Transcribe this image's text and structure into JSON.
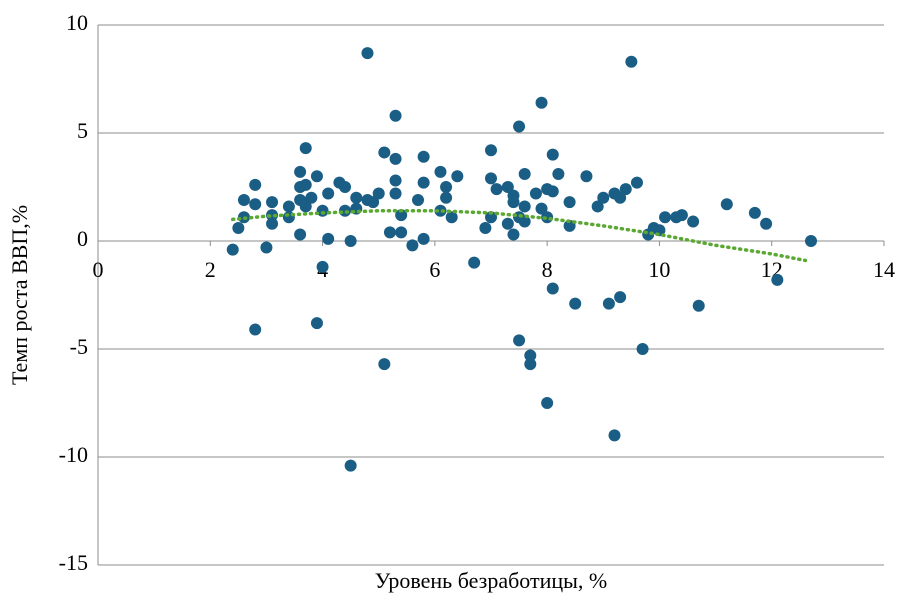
{
  "chart_data": {
    "type": "scatter",
    "xlabel": "Уровень безработицы, %",
    "ylabel": "Темп роста  ВВП,%",
    "xlim": [
      0,
      14
    ],
    "xticks": [
      0,
      2,
      4,
      6,
      8,
      10,
      12,
      14
    ],
    "ylim": [
      -15,
      10
    ],
    "yticks": [
      -15,
      -10,
      -5,
      0,
      5,
      10
    ],
    "grid": true,
    "series": [
      {
        "color": "#1b5e85",
        "x": [
          2.4,
          2.5,
          2.6,
          2.6,
          2.8,
          2.8,
          2.8,
          3.0,
          3.1,
          3.1,
          3.1,
          3.4,
          3.4,
          3.6,
          3.6,
          3.6,
          3.6,
          3.7,
          3.7,
          3.7,
          3.8,
          3.9,
          3.9,
          4.0,
          4.0,
          4.1,
          4.1,
          4.3,
          4.4,
          4.4,
          4.5,
          4.5,
          4.6,
          4.6,
          4.8,
          4.8,
          4.9,
          5.0,
          5.1,
          5.1,
          5.2,
          5.3,
          5.3,
          5.3,
          5.3,
          5.4,
          5.4,
          5.6,
          5.7,
          5.8,
          5.8,
          5.8,
          6.1,
          6.1,
          6.2,
          6.2,
          6.3,
          6.4,
          6.7,
          6.9,
          7.0,
          7.0,
          7.0,
          7.1,
          7.3,
          7.3,
          7.4,
          7.4,
          7.4,
          7.5,
          7.5,
          7.5,
          7.6,
          7.6,
          7.6,
          7.7,
          7.7,
          7.8,
          7.9,
          7.9,
          8.0,
          8.0,
          8.0,
          8.1,
          8.1,
          8.1,
          8.2,
          8.4,
          8.4,
          8.5,
          8.7,
          8.9,
          9.0,
          9.1,
          9.2,
          9.2,
          9.3,
          9.3,
          9.4,
          9.5,
          9.6,
          9.7,
          9.8,
          9.9,
          10.0,
          10.1,
          10.3,
          10.4,
          10.6,
          10.7,
          11.2,
          11.7,
          11.9,
          12.1,
          12.7
        ],
        "values": [
          -0.4,
          0.6,
          1.9,
          1.1,
          2.6,
          1.7,
          -4.1,
          -0.3,
          1.8,
          1.2,
          0.8,
          1.6,
          1.1,
          3.2,
          2.5,
          1.9,
          0.3,
          4.3,
          2.6,
          1.6,
          2.0,
          3.0,
          -3.8,
          1.4,
          -1.2,
          2.2,
          0.1,
          2.7,
          2.5,
          1.4,
          0.0,
          -10.4,
          2.0,
          1.5,
          8.7,
          1.9,
          1.8,
          2.2,
          4.1,
          -5.7,
          0.4,
          5.8,
          3.8,
          2.8,
          2.2,
          1.2,
          0.4,
          -0.2,
          1.9,
          3.9,
          2.7,
          0.1,
          3.2,
          1.4,
          2.5,
          2.0,
          1.1,
          3.0,
          -1.0,
          0.6,
          4.2,
          2.9,
          1.1,
          2.4,
          2.5,
          0.8,
          2.1,
          1.8,
          0.3,
          5.3,
          1.1,
          -4.6,
          3.1,
          1.6,
          0.9,
          -5.3,
          -5.7,
          2.2,
          6.4,
          1.5,
          2.4,
          1.1,
          -7.5,
          4.0,
          2.3,
          -2.2,
          3.1,
          1.8,
          0.7,
          -2.9,
          3.0,
          1.6,
          2.0,
          -2.9,
          2.2,
          -9.0,
          2.0,
          -2.6,
          2.4,
          8.3,
          2.7,
          -5.0,
          0.3,
          0.6,
          0.5,
          1.1,
          1.1,
          1.2,
          0.9,
          -3.0,
          1.7,
          1.3,
          0.8,
          -1.8,
          0.0
        ]
      }
    ],
    "trendline": {
      "color": "#5aa832",
      "x": [
        2.4,
        3,
        4,
        5,
        6,
        7,
        8,
        9,
        10,
        11,
        12,
        12.6
      ],
      "values": [
        1.0,
        1.15,
        1.3,
        1.4,
        1.4,
        1.3,
        1.05,
        0.7,
        0.3,
        -0.2,
        -0.6,
        -0.9
      ]
    }
  }
}
